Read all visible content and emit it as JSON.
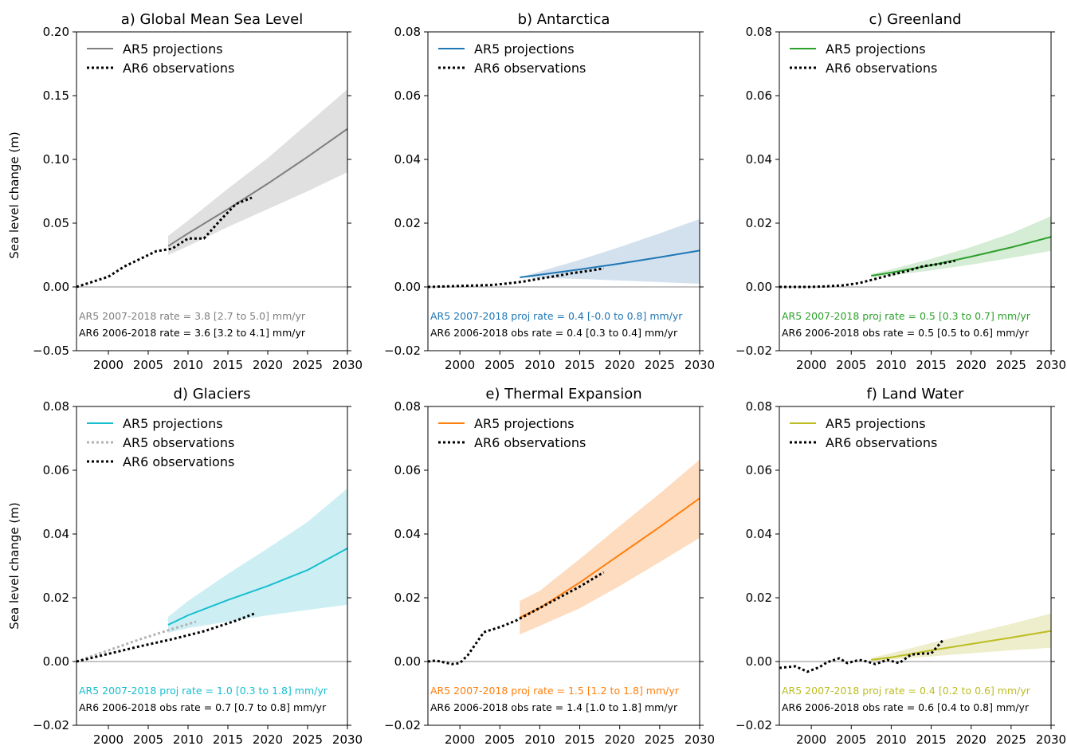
{
  "figure": {
    "ylabel": "Sea level change (m)"
  },
  "chart_data": [
    {
      "type": "line",
      "title": "a) Global Mean Sea Level",
      "xlim": [
        1996,
        2030
      ],
      "ylim": [
        -0.05,
        0.2
      ],
      "xticks": [
        2000,
        2005,
        2010,
        2015,
        2020,
        2025,
        2030
      ],
      "yticks": [
        -0.05,
        0.0,
        0.05,
        0.1,
        0.15,
        0.2
      ],
      "ytick_labels": [
        "−0.05",
        "0.00",
        "0.05",
        "0.10",
        "0.15",
        "0.20"
      ],
      "color": "#7f7f7f",
      "band_color": "#e0e0e0",
      "legend": [
        "AR5 projections",
        "AR6 observations"
      ],
      "series": [
        {
          "name": "AR5 projections",
          "style": "solid",
          "x": [
            2007.5,
            2010,
            2015,
            2020,
            2025,
            2030
          ],
          "y": [
            0.032,
            0.042,
            0.061,
            0.081,
            0.102,
            0.124
          ]
        },
        {
          "name": "AR6 observations",
          "style": "dotted",
          "x": [
            1996,
            1998,
            2000,
            2002,
            2004,
            2006,
            2008,
            2010,
            2012,
            2014,
            2016,
            2018
          ],
          "y": [
            0.0,
            0.004,
            0.008,
            0.016,
            0.022,
            0.028,
            0.03,
            0.038,
            0.038,
            0.052,
            0.065,
            0.07
          ]
        }
      ],
      "band": {
        "name": "AR5 likely range",
        "x": [
          2007.5,
          2010,
          2015,
          2020,
          2025,
          2030
        ],
        "low": [
          0.025,
          0.032,
          0.047,
          0.061,
          0.075,
          0.09
        ],
        "high": [
          0.04,
          0.052,
          0.077,
          0.101,
          0.128,
          0.155
        ]
      },
      "annotations": [
        {
          "text": "AR5 2007-2018 rate = 3.8 [2.7 to 5.0] mm/yr",
          "color": "#7f7f7f"
        },
        {
          "text": "AR6 2006-2018 rate = 3.6 [3.2 to 4.1] mm/yr",
          "color": "#000000"
        }
      ]
    },
    {
      "type": "line",
      "title": "b) Antarctica",
      "xlim": [
        1996,
        2030
      ],
      "ylim": [
        -0.02,
        0.08
      ],
      "xticks": [
        2000,
        2005,
        2010,
        2015,
        2020,
        2025,
        2030
      ],
      "yticks": [
        -0.02,
        0.0,
        0.02,
        0.04,
        0.06,
        0.08
      ],
      "ytick_labels": [
        "−0.02",
        "0.00",
        "0.02",
        "0.04",
        "0.06",
        "0.08"
      ],
      "color": "#1f77b4",
      "band_color": "#d3e1ee",
      "legend": [
        "AR5 projections",
        "AR6 observations"
      ],
      "series": [
        {
          "name": "AR5 projections",
          "style": "solid",
          "x": [
            2007.5,
            2010,
            2015,
            2020,
            2025,
            2030
          ],
          "y": [
            0.003,
            0.0038,
            0.0055,
            0.0073,
            0.0093,
            0.0114
          ]
        },
        {
          "name": "AR6 observations",
          "style": "dotted",
          "x": [
            1996,
            2000,
            2004,
            2006,
            2008,
            2010,
            2012,
            2014,
            2016,
            2018
          ],
          "y": [
            0.0,
            0.0003,
            0.0006,
            0.0011,
            0.0017,
            0.0026,
            0.0034,
            0.0043,
            0.005,
            0.0058
          ]
        }
      ],
      "band": {
        "name": "AR5 likely range",
        "x": [
          2007.5,
          2010,
          2015,
          2020,
          2025,
          2030
        ],
        "low": [
          0.003,
          0.0028,
          0.0025,
          0.002,
          0.0015,
          0.001
        ],
        "high": [
          0.003,
          0.0048,
          0.0085,
          0.0125,
          0.0168,
          0.0213
        ]
      },
      "annotations": [
        {
          "text": "AR5 2007-2018 proj rate = 0.4 [-0.0 to 0.8] mm/yr",
          "color": "#1f77b4"
        },
        {
          "text": "AR6 2006-2018 obs rate = 0.4 [0.3 to 0.4] mm/yr",
          "color": "#000000"
        }
      ]
    },
    {
      "type": "line",
      "title": "c) Greenland",
      "xlim": [
        1996,
        2030
      ],
      "ylim": [
        -0.02,
        0.08
      ],
      "xticks": [
        2000,
        2005,
        2010,
        2015,
        2020,
        2025,
        2030
      ],
      "yticks": [
        -0.02,
        0.0,
        0.02,
        0.04,
        0.06,
        0.08
      ],
      "ytick_labels": [
        "−0.02",
        "0.00",
        "0.02",
        "0.04",
        "0.06",
        "0.08"
      ],
      "color": "#2ca02c",
      "band_color": "#d5ecd5",
      "legend": [
        "AR5 projections",
        "AR6 observations"
      ],
      "series": [
        {
          "name": "AR5 projections",
          "style": "solid",
          "x": [
            2007.5,
            2010,
            2015,
            2020,
            2025,
            2030
          ],
          "y": [
            0.0035,
            0.0045,
            0.0068,
            0.0095,
            0.0124,
            0.0157
          ]
        },
        {
          "name": "AR6 observations",
          "style": "dotted",
          "x": [
            1996,
            2000,
            2002,
            2004,
            2006,
            2008,
            2010,
            2012,
            2014,
            2016,
            2018
          ],
          "y": [
            0.0,
            0.0,
            0.0002,
            0.0005,
            0.0012,
            0.0025,
            0.0038,
            0.005,
            0.0065,
            0.0072,
            0.0082
          ]
        }
      ],
      "band": {
        "name": "AR5 likely range",
        "x": [
          2007.5,
          2010,
          2015,
          2020,
          2025,
          2030
        ],
        "low": [
          0.003,
          0.0036,
          0.0052,
          0.007,
          0.0091,
          0.0113
        ],
        "high": [
          0.004,
          0.0055,
          0.0088,
          0.0125,
          0.0168,
          0.0222
        ]
      },
      "annotations": [
        {
          "text": "AR5 2007-2018 proj rate = 0.5 [0.3 to 0.7] mm/yr",
          "color": "#2ca02c"
        },
        {
          "text": "AR6 2006-2018 obs rate = 0.5 [0.5 to 0.6] mm/yr",
          "color": "#000000"
        }
      ]
    },
    {
      "type": "line",
      "title": "d) Glaciers",
      "xlim": [
        1996,
        2030
      ],
      "ylim": [
        -0.02,
        0.08
      ],
      "xticks": [
        2000,
        2005,
        2010,
        2015,
        2020,
        2025,
        2030
      ],
      "yticks": [
        -0.02,
        0.0,
        0.02,
        0.04,
        0.06,
        0.08
      ],
      "ytick_labels": [
        "−0.02",
        "0.00",
        "0.02",
        "0.04",
        "0.06",
        "0.08"
      ],
      "color": "#17becf",
      "band_color": "#cdeff3",
      "legend": [
        "AR5 projections",
        "AR5 observations",
        "AR6 observations"
      ],
      "series": [
        {
          "name": "AR5 projections",
          "style": "solid",
          "x": [
            2007.5,
            2010,
            2015,
            2020,
            2025,
            2030
          ],
          "y": [
            0.0115,
            0.0145,
            0.0193,
            0.0237,
            0.0287,
            0.0355
          ]
        },
        {
          "name": "AR5 observations",
          "style": "dotted-grey",
          "x": [
            1996,
            2000,
            2004,
            2008,
            2011
          ],
          "y": [
            0.0,
            0.0035,
            0.007,
            0.0102,
            0.0125
          ]
        },
        {
          "name": "AR6 observations",
          "style": "dotted",
          "x": [
            1996,
            2000,
            2004,
            2008,
            2012,
            2016,
            2018.5
          ],
          "y": [
            0.0,
            0.0024,
            0.0048,
            0.007,
            0.0095,
            0.0128,
            0.0152
          ]
        }
      ],
      "band": {
        "name": "AR5 likely range",
        "x": [
          2007.5,
          2010,
          2015,
          2020,
          2025,
          2030
        ],
        "low": [
          0.009,
          0.0105,
          0.0125,
          0.0145,
          0.0162,
          0.0178
        ],
        "high": [
          0.014,
          0.019,
          0.0275,
          0.0355,
          0.0438,
          0.0543
        ]
      },
      "annotations": [
        {
          "text": "AR5 2007-2018 proj rate = 1.0 [0.3 to 1.8] mm/yr",
          "color": "#17becf"
        },
        {
          "text": "AR6 2006-2018 obs rate = 0.7 [0.7 to 0.8] mm/yr",
          "color": "#000000"
        }
      ]
    },
    {
      "type": "line",
      "title": "e) Thermal Expansion",
      "xlim": [
        1996,
        2030
      ],
      "ylim": [
        -0.02,
        0.08
      ],
      "xticks": [
        2000,
        2005,
        2010,
        2015,
        2020,
        2025,
        2030
      ],
      "yticks": [
        -0.02,
        0.0,
        0.02,
        0.04,
        0.06,
        0.08
      ],
      "ytick_labels": [
        "−0.02",
        "0.00",
        "0.02",
        "0.04",
        "0.06",
        "0.08"
      ],
      "color": "#ff7f0e",
      "band_color": "#fddcc0",
      "legend": [
        "AR5 projections",
        "AR6 observations"
      ],
      "series": [
        {
          "name": "AR5 projections",
          "style": "solid",
          "x": [
            2007.5,
            2010,
            2015,
            2020,
            2025,
            2030
          ],
          "y": [
            0.0138,
            0.0168,
            0.0248,
            0.0335,
            0.0422,
            0.0512
          ]
        },
        {
          "name": "AR6 observations",
          "style": "dotted",
          "x": [
            1996,
            1997,
            1999,
            2000,
            2001,
            2003,
            2005,
            2007,
            2010,
            2012,
            2015,
            2018
          ],
          "y": [
            0.0,
            0.0003,
            -0.0008,
            -0.0005,
            0.002,
            0.0092,
            0.0108,
            0.0128,
            0.0168,
            0.0195,
            0.0235,
            0.028
          ]
        }
      ],
      "band": {
        "name": "AR5 likely range",
        "x": [
          2007.5,
          2010,
          2015,
          2020,
          2025,
          2030
        ],
        "low": [
          0.0085,
          0.0112,
          0.0167,
          0.0237,
          0.0312,
          0.0388
        ],
        "high": [
          0.019,
          0.0222,
          0.0322,
          0.0425,
          0.0527,
          0.0633
        ]
      },
      "annotations": [
        {
          "text": "AR5 2007-2018 proj rate = 1.5 [1.2 to 1.8] mm/yr",
          "color": "#ff7f0e"
        },
        {
          "text": "AR6 2006-2018 obs rate = 1.4 [1.0 to 1.8] mm/yr",
          "color": "#000000"
        }
      ]
    },
    {
      "type": "line",
      "title": "f) Land Water",
      "xlim": [
        1996,
        2030
      ],
      "ylim": [
        -0.02,
        0.08
      ],
      "xticks": [
        2000,
        2005,
        2010,
        2015,
        2020,
        2025,
        2030
      ],
      "yticks": [
        -0.02,
        0.0,
        0.02,
        0.04,
        0.06,
        0.08
      ],
      "ytick_labels": [
        "−0.02",
        "0.00",
        "0.02",
        "0.04",
        "0.06",
        "0.08"
      ],
      "color": "#bcbd22",
      "band_color": "#eeeecc",
      "legend": [
        "AR5 projections",
        "AR6 observations"
      ],
      "series": [
        {
          "name": "AR5 projections",
          "style": "solid",
          "x": [
            2007.5,
            2010,
            2015,
            2020,
            2025,
            2030
          ],
          "y": [
            0.0005,
            0.0013,
            0.0035,
            0.0055,
            0.0075,
            0.0096
          ]
        },
        {
          "name": "AR6 observations",
          "style": "dotted",
          "x": [
            1996,
            1998,
            1999.5,
            2001,
            2002,
            2003.5,
            2004.5,
            2006,
            2007,
            2008,
            2009.5,
            2011,
            2012.5,
            2014,
            2015,
            2016.5
          ],
          "y": [
            -0.002,
            -0.0015,
            -0.0032,
            -0.0018,
            -0.0002,
            0.001,
            -0.0005,
            0.0005,
            0.0,
            -0.0008,
            0.0005,
            -0.0005,
            0.0022,
            0.0025,
            0.0025,
            0.0068
          ]
        }
      ],
      "band": {
        "name": "AR5 likely range",
        "x": [
          2007.5,
          2010,
          2015,
          2020,
          2025,
          2030
        ],
        "low": [
          0.0,
          0.0006,
          0.0016,
          0.0026,
          0.0035,
          0.0043
        ],
        "high": [
          0.0012,
          0.0026,
          0.0058,
          0.0088,
          0.0118,
          0.0151
        ]
      },
      "annotations": [
        {
          "text": "AR5 2007-2018 proj rate = 0.4 [0.2 to 0.6] mm/yr",
          "color": "#bcbd22"
        },
        {
          "text": "AR6 2006-2018 obs rate = 0.6 [0.4 to 0.8] mm/yr",
          "color": "#000000"
        }
      ]
    }
  ]
}
